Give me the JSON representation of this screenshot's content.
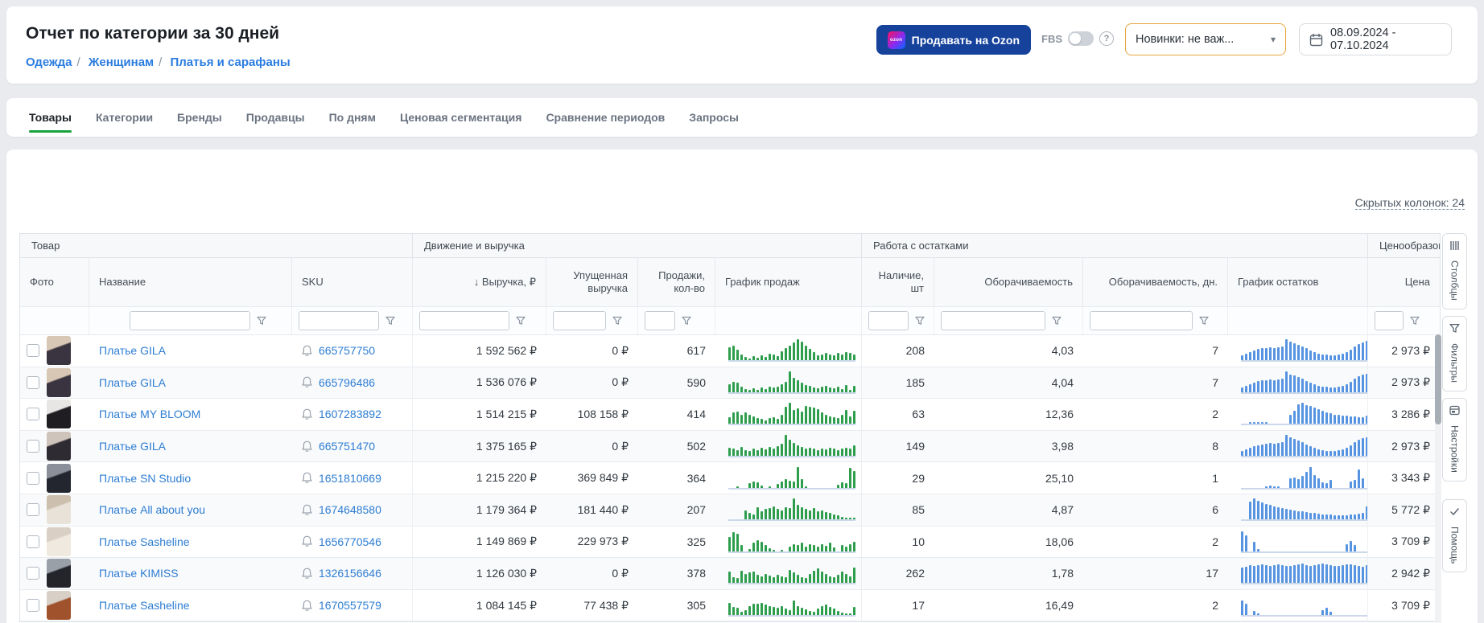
{
  "colors": {
    "accent_green": "#18a23c",
    "link_blue": "#2d7dd2",
    "sales_bar": "#2e9e4d",
    "stock_bar": "#5693e0",
    "ozon_button_bg": "#16429c",
    "novelty_border": "#e8a33f"
  },
  "header": {
    "title": "Отчет по категории за 30 дней",
    "breadcrumbs": [
      "Одежда",
      "Женщинам",
      "Платья и сарафаны"
    ],
    "ozon_button_label": "Продавать на Ozon",
    "ozon_logo_text": "ozon",
    "fbs_label": "FBS",
    "help_icon_text": "?",
    "novelty_select_value": "Новинки: не важ...",
    "date_range": "08.09.2024 - 07.10.2024"
  },
  "tabs": [
    {
      "label": "Товары",
      "active": true
    },
    {
      "label": "Категории",
      "active": false
    },
    {
      "label": "Бренды",
      "active": false
    },
    {
      "label": "Продавцы",
      "active": false
    },
    {
      "label": "По дням",
      "active": false
    },
    {
      "label": "Ценовая сегментация",
      "active": false
    },
    {
      "label": "Сравнение периодов",
      "active": false
    },
    {
      "label": "Запросы",
      "active": false
    }
  ],
  "side_toolbar": [
    {
      "icon": "columns-icon",
      "label": "Столбцы"
    },
    {
      "icon": "filter-icon",
      "label": "Фильтры"
    },
    {
      "icon": "settings-icon",
      "label": "Настройки"
    },
    {
      "icon": "check-icon",
      "label": "Помощь",
      "gap_before": true
    }
  ],
  "table": {
    "hidden_columns_link": "Скрытых колонок: 24",
    "groups": [
      "Товар",
      "Движение и выручка",
      "Работа с остатками",
      "Ценообразование"
    ],
    "columns": {
      "photo": "Фото",
      "name": "Название",
      "sku": "SKU",
      "revenue": "↓ Выручка, ₽",
      "lost_revenue": "Упущенная выручка",
      "sales": "Продажи, кол-во",
      "sales_chart": "График продаж",
      "stock": "Наличие, шт",
      "turnover": "Оборачиваемость",
      "turnover_days": "Оборачиваемость, дн.",
      "stock_chart": "График остатков",
      "price": "Цена"
    },
    "rows": [
      {
        "name": "Платье GILA",
        "sku": "665757750",
        "revenue": "1 592 562 ₽",
        "lost_revenue": "0 ₽",
        "sales": "617",
        "stock": "208",
        "turnover": "4,03",
        "turnover_days": "7",
        "price": "2 973 ₽",
        "photo": {
          "bg": "#d8c7b4",
          "fg": "#3a3440"
        },
        "sales_chart": [
          62,
          70,
          52,
          28,
          16,
          10,
          20,
          12,
          26,
          18,
          32,
          28,
          22,
          42,
          58,
          70,
          85,
          100,
          88,
          72,
          54,
          38,
          26,
          30,
          36,
          28,
          24,
          34,
          28,
          40,
          36,
          30
        ],
        "stock_chart": [
          24,
          32,
          40,
          47,
          54,
          58,
          60,
          62,
          60,
          64,
          68,
          100,
          88,
          82,
          75,
          67,
          57,
          47,
          39,
          33,
          29,
          27,
          25,
          24,
          27,
          32,
          40,
          52,
          67,
          79,
          87,
          92
        ]
      },
      {
        "name": "Платье GILA",
        "sku": "665796486",
        "revenue": "1 536 076 ₽",
        "lost_revenue": "0 ₽",
        "sales": "590",
        "stock": "185",
        "turnover": "4,04",
        "turnover_days": "7",
        "price": "2 973 ₽",
        "photo": {
          "bg": "#d8c7b4",
          "fg": "#3a3440"
        },
        "sales_chart": [
          38,
          48,
          44,
          26,
          14,
          10,
          18,
          12,
          22,
          16,
          28,
          24,
          26,
          38,
          50,
          100,
          68,
          58,
          46,
          36,
          30,
          24,
          20,
          26,
          30,
          24,
          18,
          28,
          14,
          36,
          10,
          30
        ],
        "stock_chart": [
          22,
          30,
          38,
          46,
          52,
          56,
          58,
          60,
          58,
          62,
          66,
          100,
          86,
          80,
          73,
          65,
          55,
          45,
          37,
          31,
          27,
          25,
          23,
          22,
          25,
          30,
          38,
          50,
          66,
          78,
          86,
          90
        ]
      },
      {
        "name": "Платье MY BLOOM",
        "sku": "1607283892",
        "revenue": "1 514 215 ₽",
        "lost_revenue": "108 158 ₽",
        "sales": "414",
        "stock": "63",
        "turnover": "12,36",
        "turnover_days": "2",
        "price": "3 286 ₽",
        "photo": {
          "bg": "#e8e6e4",
          "fg": "#1f1d22"
        },
        "sales_chart": [
          34,
          54,
          58,
          46,
          56,
          44,
          36,
          28,
          24,
          16,
          28,
          34,
          26,
          44,
          84,
          100,
          68,
          76,
          60,
          86,
          84,
          78,
          70,
          54,
          46,
          38,
          34,
          28,
          44,
          68,
          38,
          62
        ],
        "stock_chart": [
          0,
          0,
          3,
          5,
          6,
          4,
          2,
          0,
          0,
          0,
          0,
          0,
          45,
          65,
          95,
          100,
          92,
          85,
          78,
          70,
          62,
          55,
          50,
          46,
          44,
          42,
          40,
          38,
          36,
          34,
          33,
          40
        ]
      },
      {
        "name": "Платье GILA",
        "sku": "665751470",
        "revenue": "1 375 165 ₽",
        "lost_revenue": "0 ₽",
        "sales": "502",
        "stock": "149",
        "turnover": "3,98",
        "turnover_days": "8",
        "price": "2 973 ₽",
        "photo": {
          "bg": "#cfc4bb",
          "fg": "#2f2b33"
        },
        "sales_chart": [
          38,
          34,
          26,
          44,
          28,
          24,
          34,
          26,
          38,
          30,
          44,
          36,
          48,
          58,
          100,
          78,
          62,
          52,
          44,
          36,
          40,
          34,
          28,
          36,
          30,
          38,
          34,
          28,
          36,
          40,
          34,
          52
        ],
        "stock_chart": [
          24,
          32,
          40,
          46,
          52,
          55,
          58,
          60,
          58,
          62,
          65,
          100,
          88,
          80,
          73,
          65,
          55,
          45,
          37,
          31,
          27,
          25,
          24,
          23,
          26,
          31,
          39,
          51,
          65,
          77,
          85,
          88
        ]
      },
      {
        "name": "Платье SN Studio",
        "sku": "1651810669",
        "revenue": "1 215 220 ₽",
        "lost_revenue": "369 849 ₽",
        "sales": "364",
        "stock": "29",
        "turnover": "25,10",
        "turnover_days": "1",
        "price": "3 343 ₽",
        "photo": {
          "bg": "#8a8f99",
          "fg": "#23262e"
        },
        "sales_chart": [
          0,
          0,
          3,
          0,
          0,
          22,
          30,
          24,
          10,
          0,
          4,
          0,
          18,
          28,
          40,
          34,
          30,
          100,
          40,
          8,
          0,
          0,
          0,
          0,
          0,
          0,
          0,
          14,
          24,
          20,
          95,
          78
        ],
        "stock_chart": [
          0,
          0,
          0,
          0,
          0,
          0,
          8,
          12,
          5,
          3,
          0,
          0,
          46,
          48,
          42,
          56,
          76,
          100,
          60,
          45,
          26,
          20,
          36,
          0,
          0,
          0,
          0,
          30,
          36,
          86,
          46,
          0
        ]
      },
      {
        "name": "Платье All about you",
        "sku": "1674648580",
        "revenue": "1 179 364 ₽",
        "lost_revenue": "181 440 ₽",
        "sales": "207",
        "stock": "85",
        "turnover": "4,87",
        "turnover_days": "6",
        "price": "5 772 ₽",
        "photo": {
          "bg": "#cdbfae",
          "fg": "#e8e2d8"
        },
        "sales_chart": [
          0,
          0,
          0,
          0,
          44,
          30,
          24,
          58,
          40,
          50,
          54,
          64,
          50,
          44,
          58,
          54,
          100,
          70,
          58,
          50,
          44,
          54,
          40,
          44,
          34,
          30,
          24,
          20,
          14,
          10,
          8,
          5
        ],
        "stock_chart": [
          0,
          0,
          85,
          100,
          90,
          82,
          75,
          70,
          64,
          60,
          55,
          50,
          46,
          42,
          40,
          38,
          35,
          32,
          30,
          28,
          26,
          24,
          23,
          22,
          21,
          20,
          22,
          24,
          26,
          28,
          30,
          64
        ]
      },
      {
        "name": "Платье Sasheline",
        "sku": "1656770546",
        "revenue": "1 149 869 ₽",
        "lost_revenue": "229 973 ₽",
        "sales": "325",
        "stock": "10",
        "turnover": "18,06",
        "turnover_days": "2",
        "price": "3 709 ₽",
        "photo": {
          "bg": "#d9cfc4",
          "fg": "#efe9df"
        },
        "sales_chart": [
          70,
          92,
          85,
          30,
          0,
          10,
          40,
          55,
          44,
          30,
          14,
          5,
          0,
          8,
          0,
          24,
          34,
          30,
          40,
          24,
          34,
          30,
          24,
          34,
          28,
          40,
          20,
          0,
          30,
          24,
          34,
          44
        ],
        "stock_chart": [
          95,
          78,
          0,
          45,
          10,
          0,
          0,
          0,
          0,
          0,
          0,
          0,
          0,
          0,
          0,
          0,
          0,
          0,
          0,
          0,
          0,
          0,
          0,
          0,
          0,
          0,
          34,
          50,
          30,
          0,
          0,
          0
        ]
      },
      {
        "name": "Платье KIMISS",
        "sku": "1326156646",
        "revenue": "1 126 030 ₽",
        "lost_revenue": "0 ₽",
        "sales": "378",
        "stock": "262",
        "turnover": "1,78",
        "turnover_days": "17",
        "price": "2 942 ₽",
        "photo": {
          "bg": "#9aa0a8",
          "fg": "#23252b"
        },
        "sales_chart": [
          54,
          30,
          24,
          58,
          44,
          50,
          54,
          40,
          34,
          44,
          38,
          30,
          42,
          34,
          28,
          64,
          50,
          40,
          30,
          24,
          44,
          58,
          70,
          54,
          44,
          34,
          30,
          40,
          54,
          44,
          34,
          74
        ],
        "stock_chart": [
          75,
          80,
          85,
          82,
          86,
          90,
          85,
          82,
          86,
          92,
          88,
          84,
          82,
          86,
          90,
          94,
          88,
          84,
          86,
          90,
          96,
          92,
          88,
          84,
          82,
          88,
          92,
          90,
          86,
          84,
          80,
          86
        ]
      },
      {
        "name": "Платье Sasheline",
        "sku": "1670557579",
        "revenue": "1 084 145 ₽",
        "lost_revenue": "77 438 ₽",
        "sales": "305",
        "stock": "17",
        "turnover": "16,49",
        "turnover_days": "2",
        "price": "3 709 ₽",
        "photo": {
          "bg": "#d8cfc6",
          "fg": "#a0522d"
        },
        "sales_chart": [
          58,
          40,
          34,
          14,
          24,
          44,
          54,
          54,
          58,
          50,
          44,
          40,
          34,
          44,
          30,
          24,
          70,
          44,
          34,
          28,
          20,
          14,
          30,
          44,
          50,
          40,
          30,
          20,
          10,
          8,
          5,
          40
        ],
        "stock_chart": [
          70,
          55,
          0,
          20,
          8,
          0,
          0,
          0,
          0,
          0,
          0,
          0,
          0,
          0,
          0,
          0,
          0,
          0,
          0,
          0,
          25,
          35,
          15,
          0,
          0,
          0,
          0,
          0,
          0,
          0,
          0,
          0
        ]
      }
    ]
  }
}
